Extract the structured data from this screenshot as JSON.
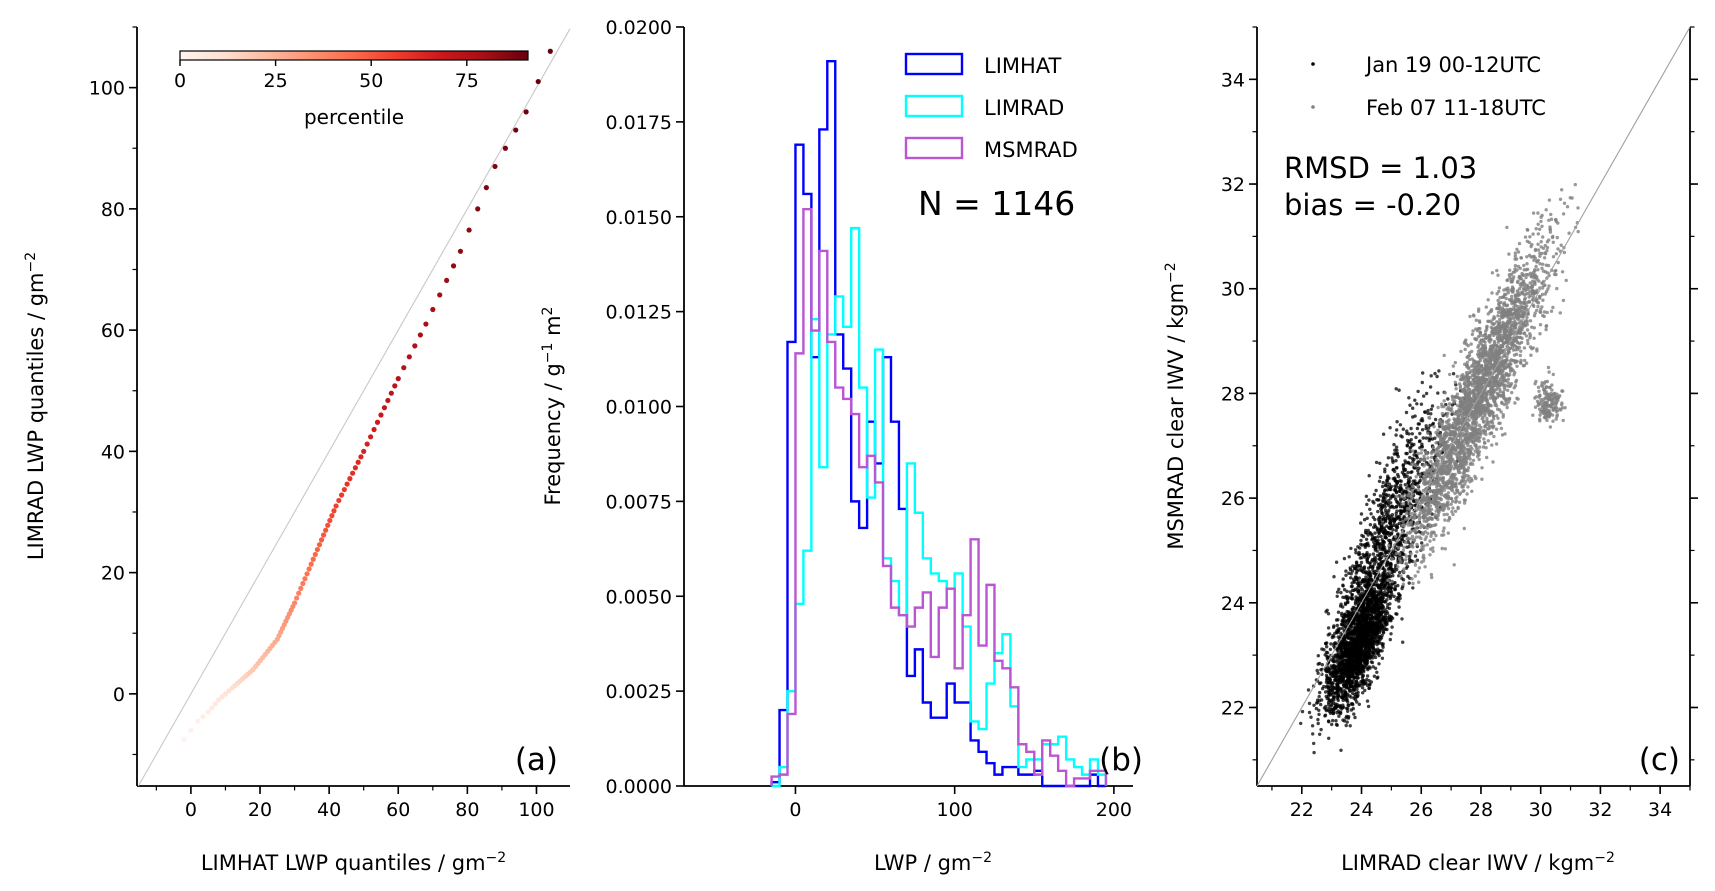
{
  "chart_data": [
    {
      "type": "scatter",
      "panel_label": "(a)",
      "xlabel": "LIMHAT LWP quantiles / gm",
      "xlabel_sup": "−2",
      "ylabel": "LIMRAD LWP quantiles / gm",
      "ylabel_sup": "−2",
      "xlim": [
        -15.6,
        109.7
      ],
      "ylim": [
        -15.2,
        110
      ],
      "xticks": [
        0,
        20,
        40,
        60,
        80,
        100
      ],
      "xtick_labels": [
        "0",
        "20",
        "40",
        "60",
        "80",
        "100"
      ],
      "yticks": [
        0,
        20,
        40,
        60,
        80,
        100
      ],
      "ytick_labels": [
        "0",
        "20",
        "40",
        "60",
        "80",
        "100"
      ],
      "minor_tick_step": 10,
      "one_to_one_line": true,
      "colorbar": {
        "label": "percentile",
        "range": [
          0,
          91
        ],
        "ticks": [
          0,
          25,
          50,
          75
        ],
        "tick_labels": [
          "0",
          "25",
          "50",
          "75"
        ],
        "colormap": "Reds",
        "placement": "top"
      },
      "quantile_curve": {
        "note_percentiles": [
          1,
          3,
          5,
          8,
          12,
          20,
          30,
          40,
          50,
          60,
          70,
          80,
          85,
          90,
          94,
          97,
          99
        ],
        "x": [
          -2,
          2,
          5,
          8,
          12,
          18,
          25,
          30,
          36,
          42,
          50,
          60,
          68,
          78,
          88,
          97,
          104
        ],
        "y": [
          -7.5,
          -4.5,
          -3,
          -1,
          1,
          4,
          9,
          15,
          23,
          31,
          40,
          52,
          61,
          73,
          87,
          96,
          106
        ]
      }
    },
    {
      "type": "histogram-step",
      "panel_label": "(b)",
      "xlabel": "LWP / gm",
      "xlabel_sup": "−2",
      "ylabel_parts": [
        "Frequency / g",
        "−1",
        " m",
        "2"
      ],
      "xlim": [
        -70,
        212
      ],
      "ylim": [
        0,
        0.02
      ],
      "xticks": [
        0,
        100,
        200
      ],
      "xtick_labels": [
        "0",
        "100",
        "200"
      ],
      "yticks": [
        0,
        0.0025,
        0.005,
        0.0075,
        0.01,
        0.0125,
        0.015,
        0.0175,
        0.02
      ],
      "ytick_labels": [
        "0.0000",
        "0.0025",
        "0.0050",
        "0.0075",
        "0.0100",
        "0.0125",
        "0.0150",
        "0.0175",
        "0.0200"
      ],
      "bin_start": -15,
      "bin_width": 5,
      "annotation": "N = 1146",
      "legend_placement": "top-right",
      "series": [
        {
          "name": "LIMHAT",
          "color": "#0000ff",
          "values": [
            0.0001,
            0.002,
            0.0117,
            0.0169,
            0.0156,
            0.0113,
            0.0173,
            0.0191,
            0.0119,
            0.011,
            0.0075,
            0.0068,
            0.0096,
            0.0085,
            0.0113,
            0.0096,
            0.0073,
            0.0029,
            0.0036,
            0.0022,
            0.0018,
            0.0018,
            0.0027,
            0.0022,
            0.0022,
            0.0012,
            0.0009,
            0.0006,
            0.0003,
            0.0005,
            0.0005,
            0.0003,
            0.0003,
            0.0004,
            0,
            0,
            0,
            0,
            0,
            0,
            0.0003,
            0
          ]
        },
        {
          "name": "LIMRAD",
          "color": "#00ffff",
          "values": [
            0,
            0.0005,
            0.0025,
            0.0048,
            0.0062,
            0.0123,
            0.0084,
            0.0119,
            0.0129,
            0.0121,
            0.0147,
            0.0105,
            0.0076,
            0.0115,
            0.006,
            0.0054,
            0.0045,
            0.0085,
            0.0072,
            0.006,
            0.0056,
            0.0054,
            0.0052,
            0.0056,
            0.0042,
            0.0017,
            0.0015,
            0.0027,
            0.0035,
            0.004,
            0.0021,
            0.0005,
            0.0007,
            0.0007,
            0.0011,
            0.0011,
            0.0013,
            0.0007,
            0.0005,
            0.0003,
            0.0007,
            0.0003
          ]
        },
        {
          "name": "MSMRAD",
          "color": "#ba55d3",
          "values": [
            0.00025,
            0.0003,
            0.0019,
            0.0114,
            0.0152,
            0.012,
            0.0141,
            0.0117,
            0.0105,
            0.0102,
            0.0098,
            0.0084,
            0.0087,
            0.008,
            0.0058,
            0.0047,
            0.0045,
            0.0042,
            0.0047,
            0.0051,
            0.0034,
            0.0047,
            0.0052,
            0.0031,
            0.0045,
            0.0065,
            0.0037,
            0.0053,
            0.0033,
            0.0031,
            0.0026,
            0.0011,
            0.0009,
            0.0003,
            0.0012,
            0.0008,
            0.0004,
            0,
            0.0002,
            0.0002,
            0.0004,
            0.0004
          ]
        }
      ]
    },
    {
      "type": "scatter",
      "panel_label": "(c)",
      "xlabel": "LIMRAD clear IWV / kgm",
      "xlabel_sup": "−2",
      "ylabel": "MSMRAD clear IWV / kgm",
      "ylabel_sup": "−2",
      "xlim": [
        20.5,
        35
      ],
      "ylim": [
        20.5,
        35
      ],
      "xticks": [
        22,
        24,
        26,
        28,
        30,
        32,
        34
      ],
      "xtick_labels": [
        "22",
        "24",
        "26",
        "28",
        "30",
        "32",
        "34"
      ],
      "yticks": [
        22,
        24,
        26,
        28,
        30,
        32,
        34
      ],
      "ytick_labels": [
        "22",
        "24",
        "26",
        "28",
        "30",
        "32",
        "34"
      ],
      "minor_tick_step": 1,
      "one_to_one_line": true,
      "stats": [
        "RMSD = 1.03",
        "bias = -0.20"
      ],
      "legend_placement": "top-left",
      "series": [
        {
          "name": "Jan 19 00-12UTC",
          "color": "#000000",
          "n_points": 3200,
          "center": [
            24.2,
            24.0
          ],
          "x_range": [
            21.5,
            28.6
          ],
          "y_range": [
            20.8,
            28.5
          ]
        },
        {
          "name": "Feb 07 11-18UTC",
          "color": "#808080",
          "n_points": 3000,
          "center": [
            28.0,
            28.0
          ],
          "x_range": [
            24.8,
            31.3
          ],
          "y_range": [
            24.3,
            32.2
          ]
        }
      ]
    }
  ]
}
